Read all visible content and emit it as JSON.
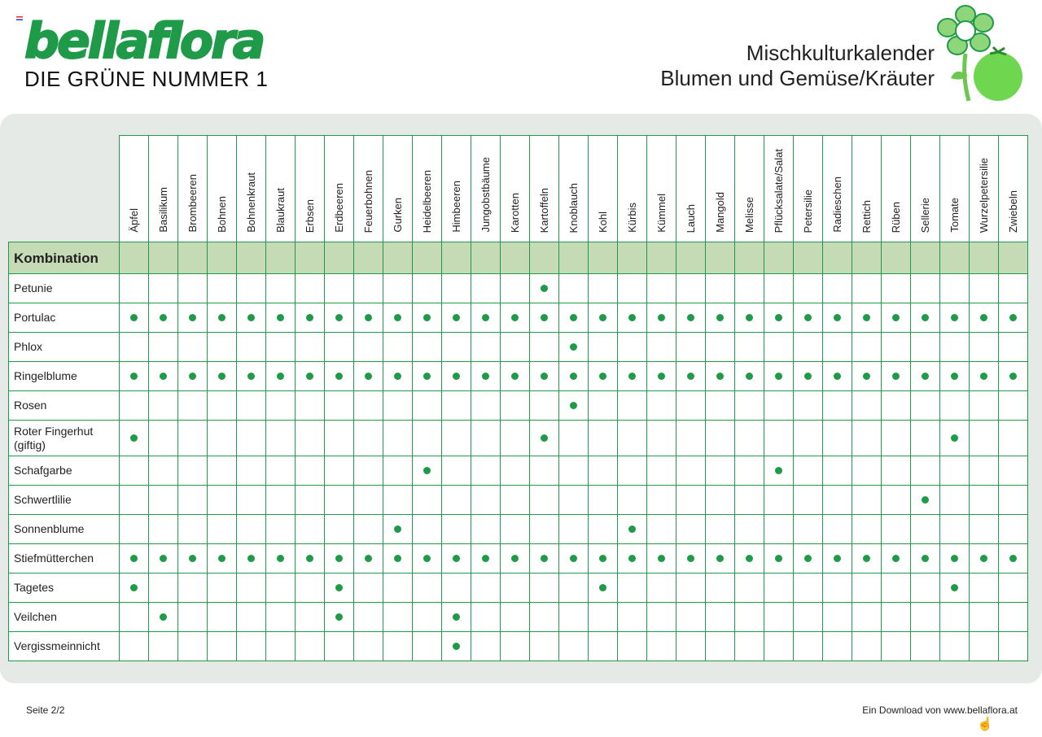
{
  "brand": {
    "name": "bellaflora",
    "tagline": "DIE GRÜNE NUMMER 1",
    "color": "#1f9a48"
  },
  "title": {
    "line1": "Mischkulturkalender",
    "line2": "Blumen und Gemüse/Kräuter"
  },
  "table": {
    "header_label": "Kombination",
    "header_fill": "#c5dbb5",
    "columns": [
      "Äpfel",
      "Basilikum",
      "Brombeeren",
      "Bohnen",
      "Bohnenkraut",
      "Blaukraut",
      "Erbsen",
      "Erdbeeren",
      "Feuerbohnen",
      "Gurken",
      "Heidelbeeren",
      "Himbeeren",
      "Jungobstbäume",
      "Karotten",
      "Kartoffeln",
      "Knoblauch",
      "Kohl",
      "Kürbis",
      "Kümmel",
      "Lauch",
      "Mangold",
      "Melisse",
      "Pflücksalate/Salat",
      "Petersilie",
      "Radieschen",
      "Rettich",
      "Rüben",
      "Sellerie",
      "Tomate",
      "Wurzelpetersilie",
      "Zwiebeln"
    ],
    "rows": [
      {
        "label": "Petunie",
        "marks": [
          14
        ]
      },
      {
        "label": "Portulac",
        "marks": "all"
      },
      {
        "label": "Phlox",
        "marks": [
          15
        ]
      },
      {
        "label": "Ringelblume",
        "marks": "all"
      },
      {
        "label": "Rosen",
        "marks": [
          15
        ]
      },
      {
        "label": "Roter Fingerhut (giftig)",
        "marks": [
          0,
          14,
          28
        ]
      },
      {
        "label": "Schafgarbe",
        "marks": [
          10,
          22
        ]
      },
      {
        "label": "Schwertlilie",
        "marks": [
          27
        ]
      },
      {
        "label": "Sonnenblume",
        "marks": [
          9,
          17
        ]
      },
      {
        "label": "Stiefmütterchen",
        "marks": "all"
      },
      {
        "label": "Tagetes",
        "marks": [
          0,
          7,
          16,
          28
        ]
      },
      {
        "label": "Veilchen",
        "marks": [
          1,
          7,
          11
        ]
      },
      {
        "label": "Vergissmeinnicht",
        "marks": [
          11
        ]
      }
    ]
  },
  "footer": {
    "page": "Seite 2/2",
    "download": "Ein Download von www.bellaflora.at"
  },
  "icons": {
    "flower": "flower-tomato-icon",
    "cursor": "hand-cursor-icon"
  }
}
